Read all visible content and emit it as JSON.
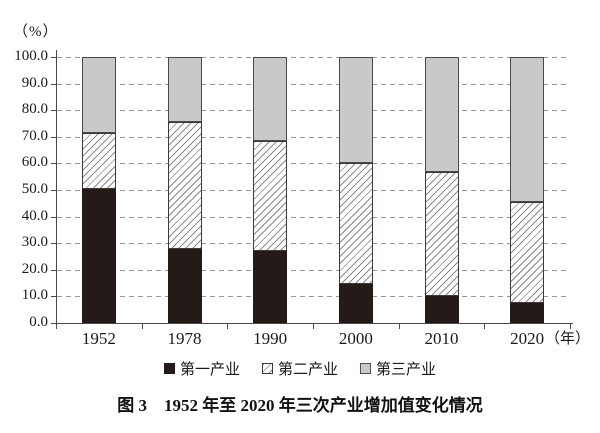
{
  "y_unit_label": "（%）",
  "x_unit_label": "（年）",
  "caption": "图 3　1952 年至 2020 年三次产业增加值变化情况",
  "legend": [
    {
      "label": "第一产业",
      "swatch": "solid-black"
    },
    {
      "label": "第二产业",
      "swatch": "diagonal-hatch"
    },
    {
      "label": "第三产业",
      "swatch": "solid-gray"
    }
  ],
  "colors": {
    "primary_fill": "#241b18",
    "secondary_hatch_line": "#8a8a8a",
    "secondary_fill": "#ffffff",
    "tertiary_fill": "#c9c9c9",
    "gridline": "#979797",
    "axis": "#4a4a4a"
  },
  "chart_data": {
    "type": "bar",
    "stacked": true,
    "title": "图 3　1952 年至 2020 年三次产业增加值变化情况",
    "categories": [
      "1952",
      "1978",
      "1990",
      "2000",
      "2010",
      "2020"
    ],
    "series": [
      {
        "name": "第一产业",
        "style": "solid-black",
        "values": [
          50.5,
          27.7,
          27.1,
          14.7,
          10.2,
          7.7
        ]
      },
      {
        "name": "第二产业",
        "style": "diagonal-hatch",
        "values": [
          20.8,
          47.7,
          41.3,
          45.5,
          46.7,
          37.8
        ]
      },
      {
        "name": "第三产业",
        "style": "solid-gray",
        "values": [
          28.7,
          24.6,
          31.6,
          39.8,
          43.1,
          54.5
        ]
      }
    ],
    "ylabel": "（%）",
    "xlabel": "（年）",
    "ylim": [
      0,
      100
    ],
    "ytick_step": 10,
    "ytick_labels": [
      "0.0",
      "10.0",
      "20.0",
      "30.0",
      "40.0",
      "50.0",
      "60.0",
      "70.0",
      "80.0",
      "90.0",
      "100.0"
    ],
    "grid": "dashed-horizontal",
    "legend_position": "bottom"
  }
}
